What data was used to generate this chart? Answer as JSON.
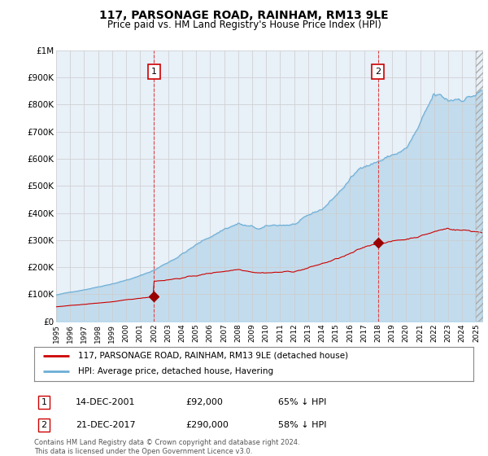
{
  "title": "117, PARSONAGE ROAD, RAINHAM, RM13 9LE",
  "subtitle": "Price paid vs. HM Land Registry's House Price Index (HPI)",
  "footer": "Contains HM Land Registry data © Crown copyright and database right 2024.\nThis data is licensed under the Open Government Licence v3.0.",
  "legend_label_red": "117, PARSONAGE ROAD, RAINHAM, RM13 9LE (detached house)",
  "legend_label_blue": "HPI: Average price, detached house, Havering",
  "annotation1_label": "1",
  "annotation1_date": "14-DEC-2001",
  "annotation1_price": "£92,000",
  "annotation1_hpi": "65% ↓ HPI",
  "annotation2_label": "2",
  "annotation2_date": "21-DEC-2017",
  "annotation2_price": "£290,000",
  "annotation2_hpi": "58% ↓ HPI",
  "red_color": "#cc0000",
  "blue_color": "#6baed6",
  "blue_fill_color": "#ddeeff",
  "dashed_color": "#dd4444",
  "background_color": "#ffffff",
  "plot_bg_color": "#e8f0f8",
  "grid_color": "#cccccc",
  "marker_color": "#990000",
  "vline1_x": 2002.0,
  "vline2_x": 2018.0,
  "marker1_x": 2002.0,
  "marker1_y": 92000,
  "marker2_x": 2018.0,
  "marker2_y": 290000,
  "ylim": [
    0,
    1000000
  ],
  "xlim": [
    1995.0,
    2025.5
  ],
  "yticks": [
    0,
    100000,
    200000,
    300000,
    400000,
    500000,
    600000,
    700000,
    800000,
    900000,
    1000000
  ],
  "ytick_labels": [
    "£0",
    "£100K",
    "£200K",
    "£300K",
    "£400K",
    "£500K",
    "£600K",
    "£700K",
    "£800K",
    "£900K",
    "£1M"
  ],
  "xtick_years": [
    1995,
    1996,
    1997,
    1998,
    1999,
    2000,
    2001,
    2002,
    2003,
    2004,
    2005,
    2006,
    2007,
    2008,
    2009,
    2010,
    2011,
    2012,
    2013,
    2014,
    2015,
    2016,
    2017,
    2018,
    2019,
    2020,
    2021,
    2022,
    2023,
    2024,
    2025
  ]
}
